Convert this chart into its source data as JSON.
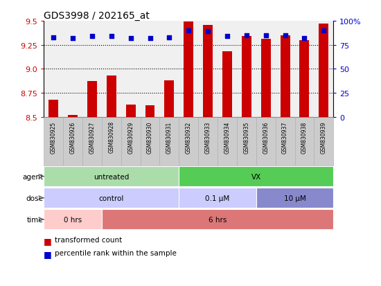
{
  "title": "GDS3998 / 202165_at",
  "samples": [
    "GSM830925",
    "GSM830926",
    "GSM830927",
    "GSM830928",
    "GSM830929",
    "GSM830930",
    "GSM830931",
    "GSM830932",
    "GSM830933",
    "GSM830934",
    "GSM830935",
    "GSM830936",
    "GSM830937",
    "GSM830938",
    "GSM830939"
  ],
  "bar_values": [
    8.68,
    8.52,
    8.87,
    8.93,
    8.63,
    8.62,
    8.88,
    9.49,
    9.46,
    9.18,
    9.34,
    9.31,
    9.35,
    9.3,
    9.47
  ],
  "dot_values": [
    83,
    82,
    84,
    84,
    82,
    82,
    83,
    90,
    89,
    84,
    85,
    85,
    85,
    82,
    90
  ],
  "ylim_left": [
    8.5,
    9.5
  ],
  "ylim_right": [
    0,
    100
  ],
  "yticks_left": [
    8.5,
    8.75,
    9.0,
    9.25,
    9.5
  ],
  "yticks_right": [
    0,
    25,
    50,
    75,
    100
  ],
  "bar_color": "#cc0000",
  "dot_color": "#0000cc",
  "bar_base": 8.5,
  "agent_groups": [
    {
      "label": "untreated",
      "start": 0,
      "end": 7,
      "color": "#aaddaa"
    },
    {
      "label": "VX",
      "start": 7,
      "end": 15,
      "color": "#55cc55"
    }
  ],
  "dose_groups": [
    {
      "label": "control",
      "start": 0,
      "end": 7,
      "color": "#ccccff"
    },
    {
      "label": "0.1 μM",
      "start": 7,
      "end": 11,
      "color": "#ccccff"
    },
    {
      "label": "10 μM",
      "start": 11,
      "end": 15,
      "color": "#8888cc"
    }
  ],
  "time_groups": [
    {
      "label": "0 hrs",
      "start": 0,
      "end": 3,
      "color": "#ffcccc"
    },
    {
      "label": "6 hrs",
      "start": 3,
      "end": 15,
      "color": "#dd7777"
    }
  ],
  "legend_bar_label": "transformed count",
  "legend_dot_label": "percentile rank within the sample",
  "bar_color_leg": "#cc0000",
  "dot_color_leg": "#0000cc",
  "bg_color": "white",
  "tick_color_left": "#cc0000",
  "tick_color_right": "#0000cc",
  "title_fontsize": 10,
  "xtick_bg_color": "#cccccc",
  "plot_bg_color": "#f0f0f0"
}
